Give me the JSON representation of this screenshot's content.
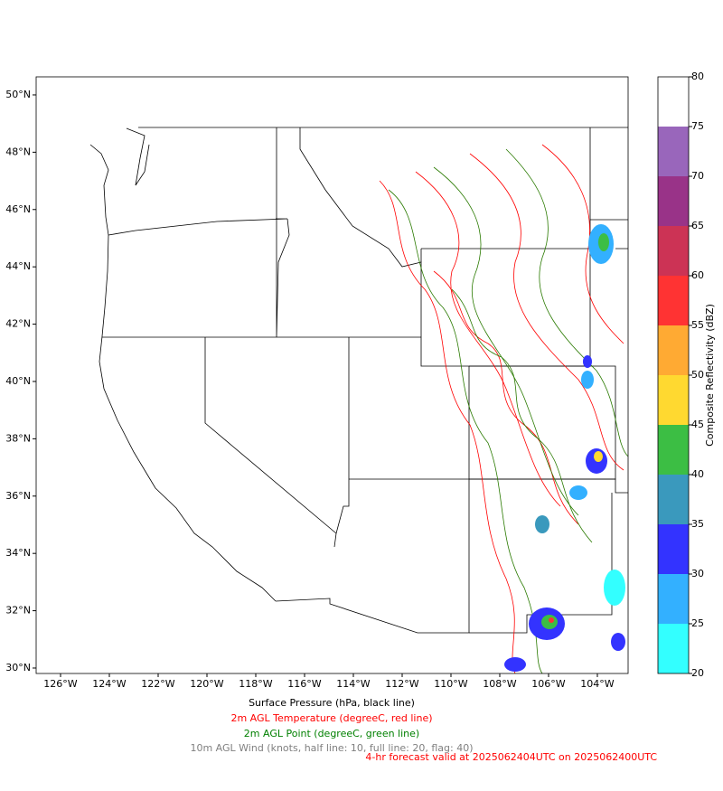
{
  "map": {
    "xlim": [
      -127,
      -102.74
    ],
    "ylim": [
      29.81,
      50.63
    ],
    "xticks": [
      {
        "value": -126,
        "label": "126°W"
      },
      {
        "value": -124,
        "label": "124°W"
      },
      {
        "value": -122,
        "label": "122°W"
      },
      {
        "value": -120,
        "label": "120°W"
      },
      {
        "value": -118,
        "label": "118°W"
      },
      {
        "value": -116,
        "label": "116°W"
      },
      {
        "value": -114,
        "label": "114°W"
      },
      {
        "value": -112,
        "label": "112°W"
      },
      {
        "value": -110,
        "label": "110°W"
      },
      {
        "value": -108,
        "label": "108°W"
      },
      {
        "value": -106,
        "label": "106°W"
      },
      {
        "value": -104,
        "label": "104°W"
      }
    ],
    "yticks": [
      {
        "value": 30,
        "label": "30°N"
      },
      {
        "value": 32,
        "label": "32°N"
      },
      {
        "value": 34,
        "label": "34°N"
      },
      {
        "value": 36,
        "label": "36°N"
      },
      {
        "value": 38,
        "label": "38°N"
      },
      {
        "value": 40,
        "label": "40°N"
      },
      {
        "value": 42,
        "label": "42°N"
      },
      {
        "value": 44,
        "label": "44°N"
      },
      {
        "value": 46,
        "label": "46°N"
      },
      {
        "value": 48,
        "label": "48°N"
      },
      {
        "value": 50,
        "label": "50°N"
      }
    ]
  },
  "colorbar": {
    "label": "Composite Reflectivity (dBZ)",
    "lim": [
      20,
      80
    ],
    "ticks": [
      20,
      25,
      30,
      35,
      40,
      45,
      50,
      55,
      60,
      65,
      70,
      75,
      80
    ],
    "colors": [
      "#33ffff",
      "#33b0ff",
      "#3333ff",
      "#3a99bd",
      "#3cbe44",
      "#ffd930",
      "#ffaa33",
      "#ff3333",
      "#cc3355",
      "#993388",
      "#9966bb",
      "#ffffff"
    ]
  },
  "captions": [
    {
      "text": "Surface Pressure (hPa, black line)",
      "color": "#000000"
    },
    {
      "text": "2m AGL Temperature (degreeC, red line)",
      "color": "#ff0000"
    },
    {
      "text": "2m AGL Point (degreeC, green line)",
      "color": "#008000"
    },
    {
      "text": "10m AGL Wind (knots, half line: 10, full line: 20, flag: 40)",
      "color": "#808080"
    },
    {
      "text": "4-hr forecast valid at 2025062404UTC on 2025062400UTC",
      "color": "#ff0000"
    }
  ]
}
